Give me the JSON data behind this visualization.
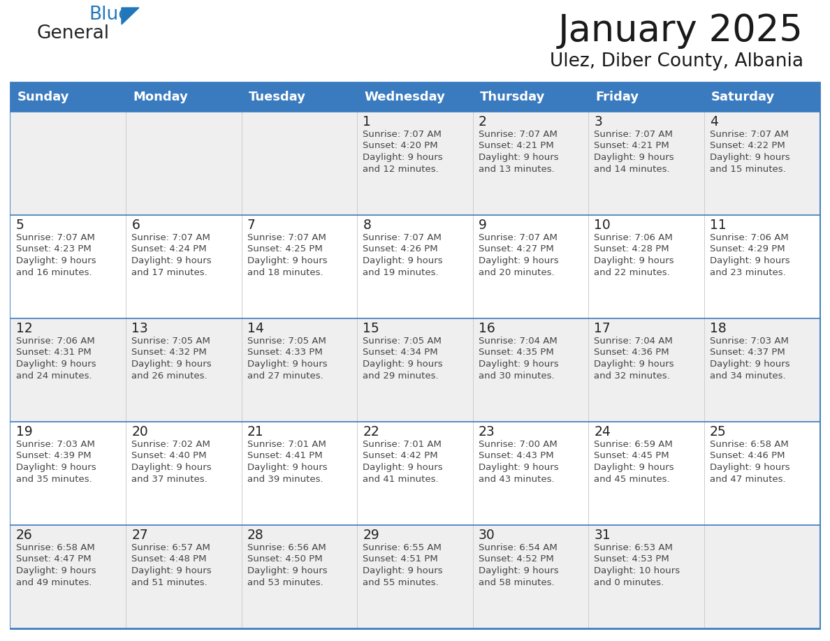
{
  "title": "January 2025",
  "subtitle": "Ulez, Diber County, Albania",
  "header_bg": "#3a7abf",
  "header_text_color": "#ffffff",
  "cell_bg_even": "#efefef",
  "cell_bg_odd": "#ffffff",
  "day_headers": [
    "Sunday",
    "Monday",
    "Tuesday",
    "Wednesday",
    "Thursday",
    "Friday",
    "Saturday"
  ],
  "text_color": "#444444",
  "day_num_color": "#222222",
  "border_color": "#3a7abf",
  "logo_general_color": "#222222",
  "logo_blue_color": "#2277bb",
  "calendar": [
    [
      {
        "day": "",
        "sunrise": "",
        "sunset": "",
        "daylight_h": "",
        "daylight_m": ""
      },
      {
        "day": "",
        "sunrise": "",
        "sunset": "",
        "daylight_h": "",
        "daylight_m": ""
      },
      {
        "day": "",
        "sunrise": "",
        "sunset": "",
        "daylight_h": "",
        "daylight_m": ""
      },
      {
        "day": "1",
        "sunrise": "7:07 AM",
        "sunset": "4:20 PM",
        "daylight_h": "9 hours",
        "daylight_m": "and 12 minutes."
      },
      {
        "day": "2",
        "sunrise": "7:07 AM",
        "sunset": "4:21 PM",
        "daylight_h": "9 hours",
        "daylight_m": "and 13 minutes."
      },
      {
        "day": "3",
        "sunrise": "7:07 AM",
        "sunset": "4:21 PM",
        "daylight_h": "9 hours",
        "daylight_m": "and 14 minutes."
      },
      {
        "day": "4",
        "sunrise": "7:07 AM",
        "sunset": "4:22 PM",
        "daylight_h": "9 hours",
        "daylight_m": "and 15 minutes."
      }
    ],
    [
      {
        "day": "5",
        "sunrise": "7:07 AM",
        "sunset": "4:23 PM",
        "daylight_h": "9 hours",
        "daylight_m": "and 16 minutes."
      },
      {
        "day": "6",
        "sunrise": "7:07 AM",
        "sunset": "4:24 PM",
        "daylight_h": "9 hours",
        "daylight_m": "and 17 minutes."
      },
      {
        "day": "7",
        "sunrise": "7:07 AM",
        "sunset": "4:25 PM",
        "daylight_h": "9 hours",
        "daylight_m": "and 18 minutes."
      },
      {
        "day": "8",
        "sunrise": "7:07 AM",
        "sunset": "4:26 PM",
        "daylight_h": "9 hours",
        "daylight_m": "and 19 minutes."
      },
      {
        "day": "9",
        "sunrise": "7:07 AM",
        "sunset": "4:27 PM",
        "daylight_h": "9 hours",
        "daylight_m": "and 20 minutes."
      },
      {
        "day": "10",
        "sunrise": "7:06 AM",
        "sunset": "4:28 PM",
        "daylight_h": "9 hours",
        "daylight_m": "and 22 minutes."
      },
      {
        "day": "11",
        "sunrise": "7:06 AM",
        "sunset": "4:29 PM",
        "daylight_h": "9 hours",
        "daylight_m": "and 23 minutes."
      }
    ],
    [
      {
        "day": "12",
        "sunrise": "7:06 AM",
        "sunset": "4:31 PM",
        "daylight_h": "9 hours",
        "daylight_m": "and 24 minutes."
      },
      {
        "day": "13",
        "sunrise": "7:05 AM",
        "sunset": "4:32 PM",
        "daylight_h": "9 hours",
        "daylight_m": "and 26 minutes."
      },
      {
        "day": "14",
        "sunrise": "7:05 AM",
        "sunset": "4:33 PM",
        "daylight_h": "9 hours",
        "daylight_m": "and 27 minutes."
      },
      {
        "day": "15",
        "sunrise": "7:05 AM",
        "sunset": "4:34 PM",
        "daylight_h": "9 hours",
        "daylight_m": "and 29 minutes."
      },
      {
        "day": "16",
        "sunrise": "7:04 AM",
        "sunset": "4:35 PM",
        "daylight_h": "9 hours",
        "daylight_m": "and 30 minutes."
      },
      {
        "day": "17",
        "sunrise": "7:04 AM",
        "sunset": "4:36 PM",
        "daylight_h": "9 hours",
        "daylight_m": "and 32 minutes."
      },
      {
        "day": "18",
        "sunrise": "7:03 AM",
        "sunset": "4:37 PM",
        "daylight_h": "9 hours",
        "daylight_m": "and 34 minutes."
      }
    ],
    [
      {
        "day": "19",
        "sunrise": "7:03 AM",
        "sunset": "4:39 PM",
        "daylight_h": "9 hours",
        "daylight_m": "and 35 minutes."
      },
      {
        "day": "20",
        "sunrise": "7:02 AM",
        "sunset": "4:40 PM",
        "daylight_h": "9 hours",
        "daylight_m": "and 37 minutes."
      },
      {
        "day": "21",
        "sunrise": "7:01 AM",
        "sunset": "4:41 PM",
        "daylight_h": "9 hours",
        "daylight_m": "and 39 minutes."
      },
      {
        "day": "22",
        "sunrise": "7:01 AM",
        "sunset": "4:42 PM",
        "daylight_h": "9 hours",
        "daylight_m": "and 41 minutes."
      },
      {
        "day": "23",
        "sunrise": "7:00 AM",
        "sunset": "4:43 PM",
        "daylight_h": "9 hours",
        "daylight_m": "and 43 minutes."
      },
      {
        "day": "24",
        "sunrise": "6:59 AM",
        "sunset": "4:45 PM",
        "daylight_h": "9 hours",
        "daylight_m": "and 45 minutes."
      },
      {
        "day": "25",
        "sunrise": "6:58 AM",
        "sunset": "4:46 PM",
        "daylight_h": "9 hours",
        "daylight_m": "and 47 minutes."
      }
    ],
    [
      {
        "day": "26",
        "sunrise": "6:58 AM",
        "sunset": "4:47 PM",
        "daylight_h": "9 hours",
        "daylight_m": "and 49 minutes."
      },
      {
        "day": "27",
        "sunrise": "6:57 AM",
        "sunset": "4:48 PM",
        "daylight_h": "9 hours",
        "daylight_m": "and 51 minutes."
      },
      {
        "day": "28",
        "sunrise": "6:56 AM",
        "sunset": "4:50 PM",
        "daylight_h": "9 hours",
        "daylight_m": "and 53 minutes."
      },
      {
        "day": "29",
        "sunrise": "6:55 AM",
        "sunset": "4:51 PM",
        "daylight_h": "9 hours",
        "daylight_m": "and 55 minutes."
      },
      {
        "day": "30",
        "sunrise": "6:54 AM",
        "sunset": "4:52 PM",
        "daylight_h": "9 hours",
        "daylight_m": "and 58 minutes."
      },
      {
        "day": "31",
        "sunrise": "6:53 AM",
        "sunset": "4:53 PM",
        "daylight_h": "10 hours",
        "daylight_m": "and 0 minutes."
      },
      {
        "day": "",
        "sunrise": "",
        "sunset": "",
        "daylight_h": "",
        "daylight_m": ""
      }
    ]
  ]
}
